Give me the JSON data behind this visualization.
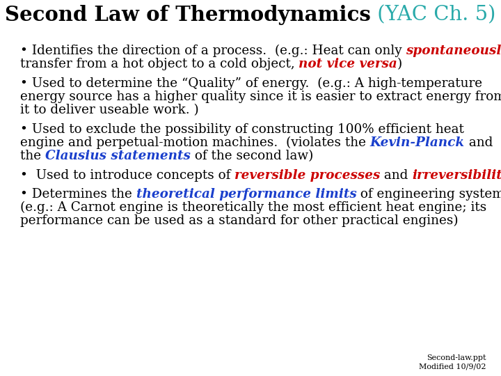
{
  "title_black": "Second Law of Thermodynamics",
  "title_teal": " (YAC Ch. 5)",
  "title_fontsize": 21,
  "bg_color": "#ffffff",
  "text_color": "#000000",
  "red_color": "#cc0000",
  "teal_color": "#2aaaaa",
  "blue_color": "#1a3fcc",
  "body_fontsize": 13.2,
  "footer_fontsize": 8.0,
  "footer": "Second-law.ppt\nModified 10/9/02"
}
